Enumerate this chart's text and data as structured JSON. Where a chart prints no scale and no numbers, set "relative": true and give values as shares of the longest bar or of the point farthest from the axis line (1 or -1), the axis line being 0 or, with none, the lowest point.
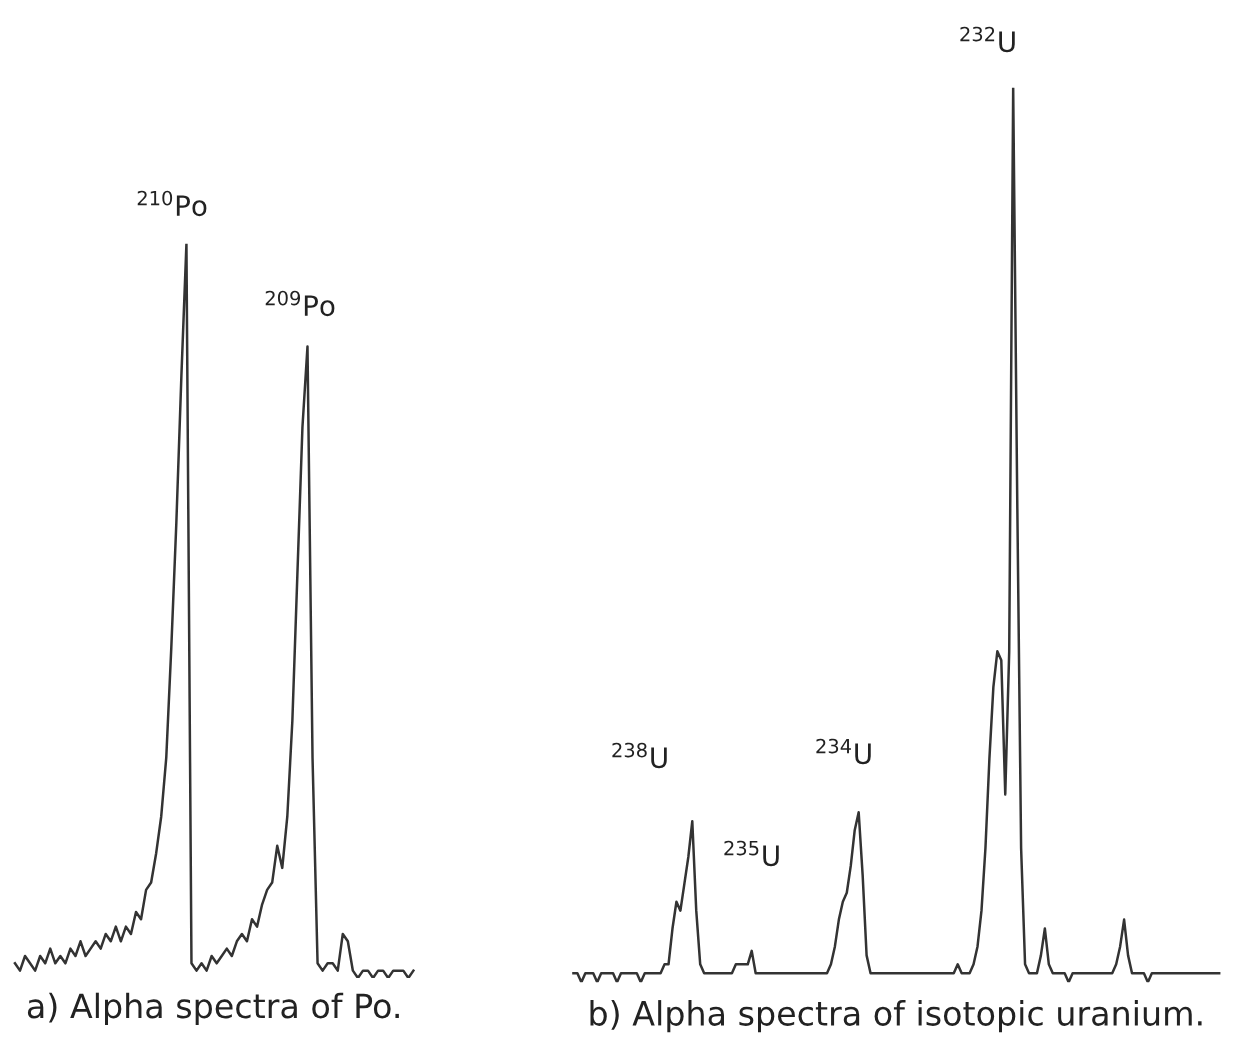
{
  "chart_data": [
    {
      "type": "line",
      "relative": true,
      "title": "a) Alpha spectra of Po.",
      "color": "#333333",
      "categories": [
        null,
        null,
        null,
        null,
        null,
        null,
        null,
        null,
        null,
        null,
        null,
        null,
        null,
        null,
        null,
        null,
        null,
        null,
        null,
        null,
        null,
        null,
        null,
        null,
        null,
        null,
        null,
        null,
        null,
        null,
        null,
        null,
        null,
        null,
        null,
        null,
        null,
        null,
        null,
        null,
        null,
        null,
        null,
        null,
        null,
        null,
        null,
        null,
        null,
        null,
        null,
        null,
        null,
        null,
        null,
        null,
        null,
        null,
        null,
        null,
        null,
        null,
        null,
        null,
        null,
        null,
        null,
        null,
        null,
        null,
        null,
        null,
        null,
        null,
        null,
        null,
        null,
        null,
        null,
        null
      ],
      "values": [
        0.02,
        0.01,
        0.03,
        0.02,
        0.01,
        0.03,
        0.02,
        0.04,
        0.02,
        0.03,
        0.02,
        0.04,
        0.03,
        0.05,
        0.03,
        0.04,
        0.05,
        0.04,
        0.06,
        0.05,
        0.07,
        0.05,
        0.07,
        0.06,
        0.09,
        0.08,
        0.12,
        0.13,
        0.17,
        0.22,
        0.3,
        0.45,
        0.62,
        0.82,
        1.0,
        0.02,
        0.01,
        0.02,
        0.01,
        0.03,
        0.02,
        0.03,
        0.04,
        0.03,
        0.05,
        0.06,
        0.05,
        0.08,
        0.07,
        0.1,
        0.12,
        0.13,
        0.18,
        0.15,
        0.22,
        0.35,
        0.55,
        0.75,
        0.86,
        0.3,
        0.02,
        0.01,
        0.02,
        0.02,
        0.01,
        0.06,
        0.05,
        0.01,
        0.0,
        0.01,
        0.01,
        0.0,
        0.01,
        0.01,
        0.0,
        0.01,
        0.01,
        0.01,
        0.0,
        0.01
      ],
      "annotations": [
        "$^{210}$Po",
        "$^{209}$Po"
      ]
    },
    {
      "type": "line",
      "relative": true,
      "title": "b) Alpha spectra of isotopic uranium.",
      "color": "#333333",
      "categories": [
        null,
        null,
        null,
        null,
        null,
        null,
        null,
        null,
        null,
        null,
        null,
        null,
        null,
        null,
        null,
        null,
        null,
        null,
        null,
        null,
        null,
        null,
        null,
        null,
        null,
        null,
        null,
        null,
        null,
        null,
        null,
        null,
        null,
        null,
        null,
        null,
        null,
        null,
        null,
        null,
        null,
        null,
        null,
        null,
        null,
        null,
        null,
        null,
        null,
        null,
        null,
        null,
        null,
        null,
        null,
        null,
        null,
        null,
        null,
        null,
        null,
        null,
        null,
        null,
        null,
        null,
        null,
        null,
        null,
        null,
        null,
        null,
        null,
        null,
        null,
        null,
        null,
        null,
        null,
        null,
        null,
        null,
        null,
        null,
        null,
        null,
        null,
        null,
        null,
        null,
        null,
        null,
        null,
        null,
        null,
        null,
        null,
        null,
        null,
        null,
        null,
        null,
        null,
        null,
        null,
        null,
        null,
        null,
        null,
        null,
        null,
        null,
        null,
        null,
        null,
        null,
        null,
        null,
        null,
        null,
        null,
        null,
        null,
        null,
        null,
        null,
        null,
        null,
        null,
        null,
        null,
        null,
        null,
        null,
        null,
        null,
        null,
        null,
        null,
        null,
        null,
        null,
        null,
        null,
        null,
        null,
        null,
        null,
        null,
        null,
        null,
        null,
        null,
        null,
        null,
        null,
        null,
        null,
        null,
        null,
        null,
        null,
        null,
        null
      ],
      "values": [
        0.01,
        0.01,
        0.0,
        0.01,
        0.01,
        0.01,
        0.0,
        0.01,
        0.01,
        0.01,
        0.01,
        0.0,
        0.01,
        0.01,
        0.01,
        0.01,
        0.01,
        0.0,
        0.01,
        0.01,
        0.01,
        0.01,
        0.01,
        0.02,
        0.02,
        0.06,
        0.09,
        0.08,
        0.11,
        0.14,
        0.18,
        0.08,
        0.02,
        0.01,
        0.01,
        0.01,
        0.01,
        0.01,
        0.01,
        0.01,
        0.01,
        0.02,
        0.02,
        0.02,
        0.02,
        0.035,
        0.01,
        0.01,
        0.01,
        0.01,
        0.01,
        0.01,
        0.01,
        0.01,
        0.01,
        0.01,
        0.01,
        0.01,
        0.01,
        0.01,
        0.01,
        0.01,
        0.01,
        0.01,
        0.01,
        0.02,
        0.04,
        0.07,
        0.09,
        0.1,
        0.13,
        0.17,
        0.19,
        0.12,
        0.03,
        0.01,
        0.01,
        0.01,
        0.01,
        0.01,
        0.01,
        0.01,
        0.01,
        0.01,
        0.01,
        0.01,
        0.01,
        0.01,
        0.01,
        0.01,
        0.01,
        0.01,
        0.01,
        0.01,
        0.01,
        0.01,
        0.01,
        0.02,
        0.01,
        0.01,
        0.01,
        0.02,
        0.04,
        0.08,
        0.15,
        0.25,
        0.33,
        0.37,
        0.36,
        0.21,
        0.37,
        1.0,
        0.55,
        0.15,
        0.02,
        0.01,
        0.01,
        0.01,
        0.03,
        0.06,
        0.02,
        0.01,
        0.01,
        0.01,
        0.01,
        0.0,
        0.01,
        0.01,
        0.01,
        0.01,
        0.01,
        0.01,
        0.01,
        0.01,
        0.01,
        0.01,
        0.01,
        0.02,
        0.04,
        0.07,
        0.03,
        0.01,
        0.01,
        0.01,
        0.01,
        0.0,
        0.01,
        0.01,
        0.01,
        0.01,
        0.01,
        0.01,
        0.01,
        0.01,
        0.01,
        0.01,
        0.01,
        0.01,
        0.01,
        0.01,
        0.01,
        0.01,
        0.01,
        0.01
      ],
      "annotations": [
        "$^{238}$U",
        "$^{235}$U",
        "$^{234}$U",
        "$^{232}$U"
      ]
    }
  ]
}
